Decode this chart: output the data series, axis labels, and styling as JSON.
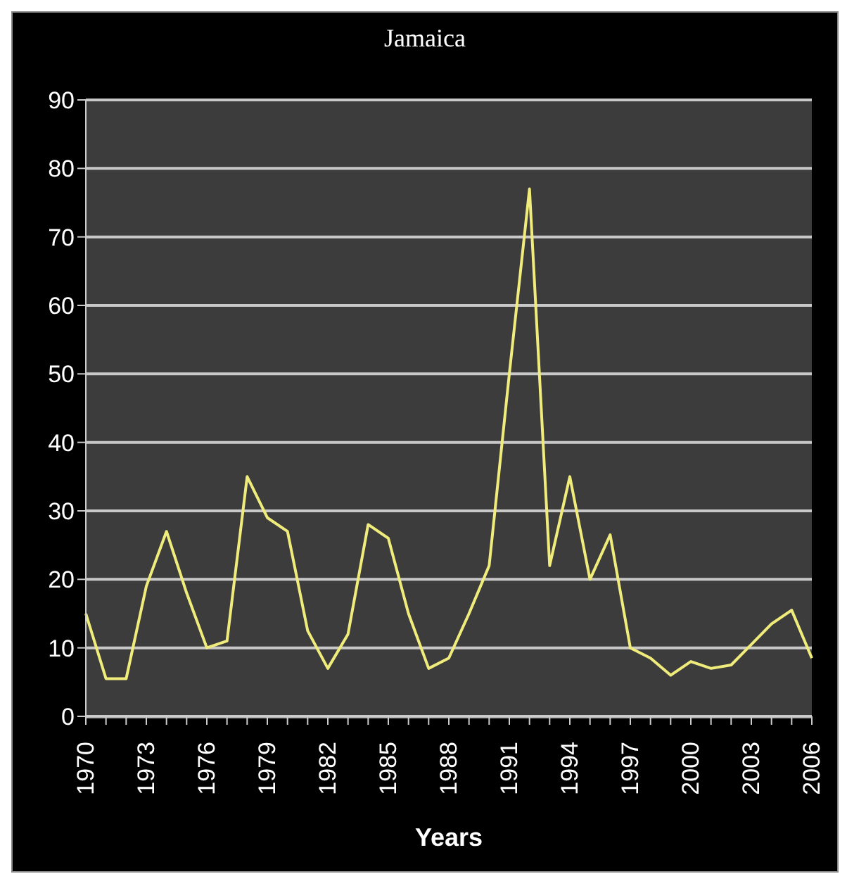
{
  "chart_data": {
    "type": "line",
    "title": "Jamaica",
    "xlabel": "Years",
    "categories": [
      "1970",
      null,
      null,
      "1973",
      null,
      null,
      "1976",
      null,
      null,
      "1979",
      null,
      null,
      "1982",
      null,
      null,
      "1985",
      null,
      null,
      "1988",
      null,
      null,
      "1991",
      null,
      null,
      "1994",
      null,
      null,
      "1997",
      null,
      null,
      "2000",
      null,
      null,
      "2003",
      null,
      null,
      "2006"
    ],
    "series": [
      {
        "color": "#f0ec7c",
        "values": [
          15,
          5.5,
          5.5,
          19,
          27,
          18,
          10,
          11,
          35,
          29,
          27,
          12.5,
          7,
          12,
          28,
          26,
          15,
          7,
          8.5,
          15,
          22,
          50,
          77,
          22,
          35,
          20,
          26.5,
          10,
          8.5,
          6,
          8,
          7,
          7.5,
          10.5,
          13.5,
          15.5,
          8.5
        ]
      }
    ],
    "ylim": [
      0,
      90
    ],
    "yticks": [
      0,
      10,
      20,
      30,
      40,
      50,
      60,
      70,
      80,
      90
    ],
    "grid": "y",
    "legend": false,
    "marker": "none",
    "line_style": "solid"
  }
}
